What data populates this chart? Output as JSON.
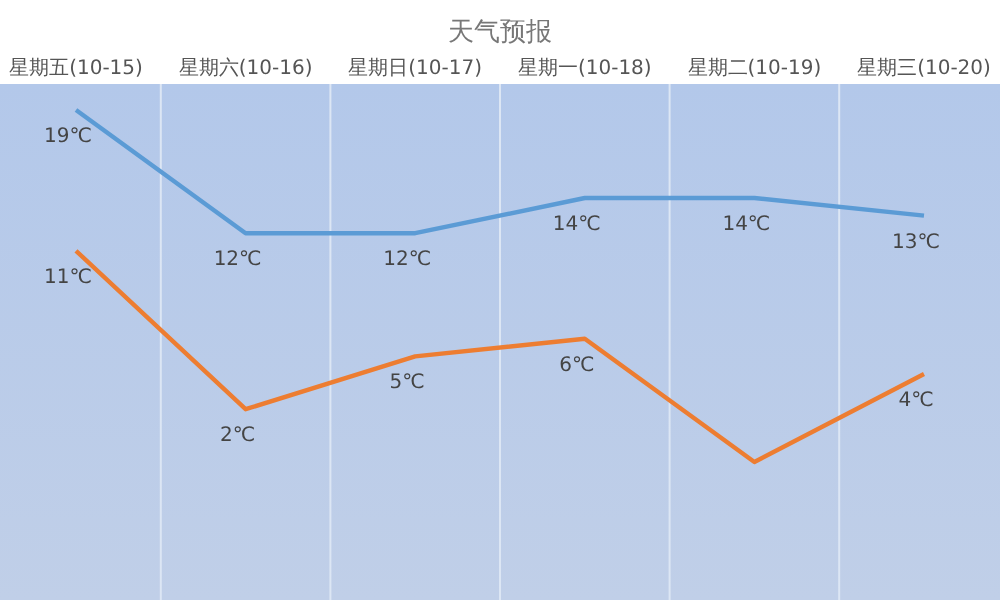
{
  "chart_data": {
    "type": "line",
    "title": "天气预报",
    "categories": [
      "星期五(10-15)",
      "星期六(10-16)",
      "星期日(10-17)",
      "星期一(10-18)",
      "星期二(10-19)",
      "星期三(10-20)"
    ],
    "series": [
      {
        "color": "#5b9bd5",
        "values": [
          19,
          12,
          12,
          14,
          14,
          13
        ],
        "value_labels": [
          "19℃",
          "12℃",
          "12℃",
          "14℃",
          "14℃",
          "13℃"
        ]
      },
      {
        "color": "#ed7d31",
        "values": [
          11,
          2,
          5,
          6,
          -1,
          4
        ],
        "value_labels": [
          "11℃",
          "2℃",
          "5℃",
          "6℃",
          null,
          "4℃"
        ]
      }
    ],
    "grid": "x",
    "marker": "none",
    "line_style": "solid"
  }
}
